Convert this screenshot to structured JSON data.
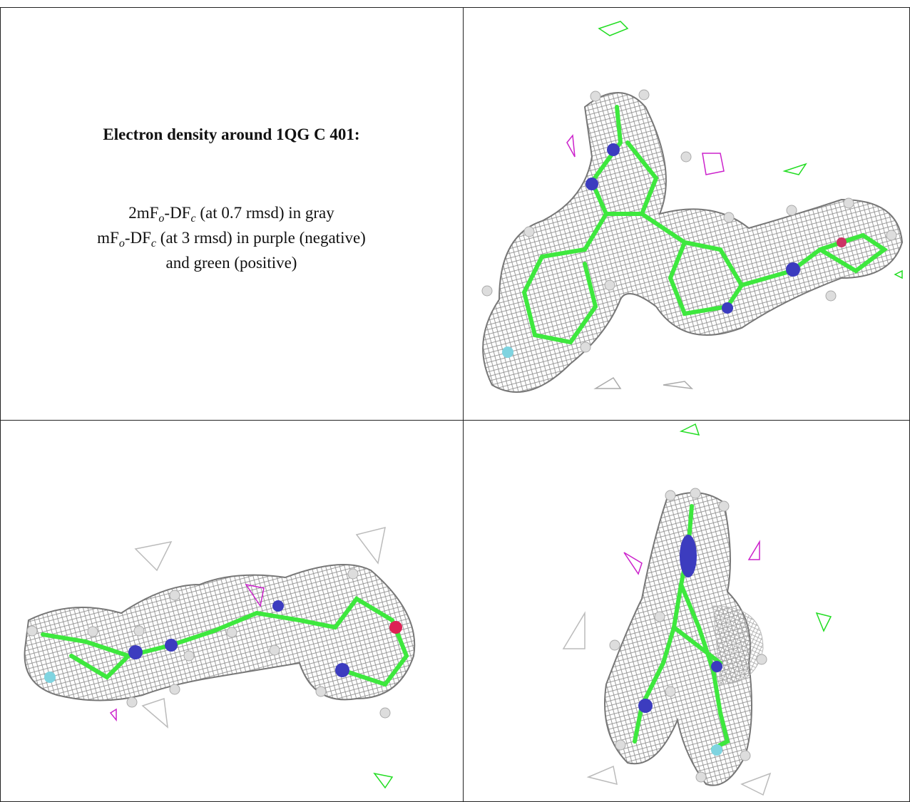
{
  "caption": {
    "title": "Electron density around 1QG C 401:",
    "lines": [
      [
        "2mF",
        "o",
        "-DF",
        "c",
        " (at 0.7 rmsd) in gray"
      ],
      [
        "mF",
        "o",
        "-DF",
        "c",
        " (at 3 rmsd) in purple (negative)"
      ],
      [
        "and green (positive)"
      ]
    ]
  }
}
